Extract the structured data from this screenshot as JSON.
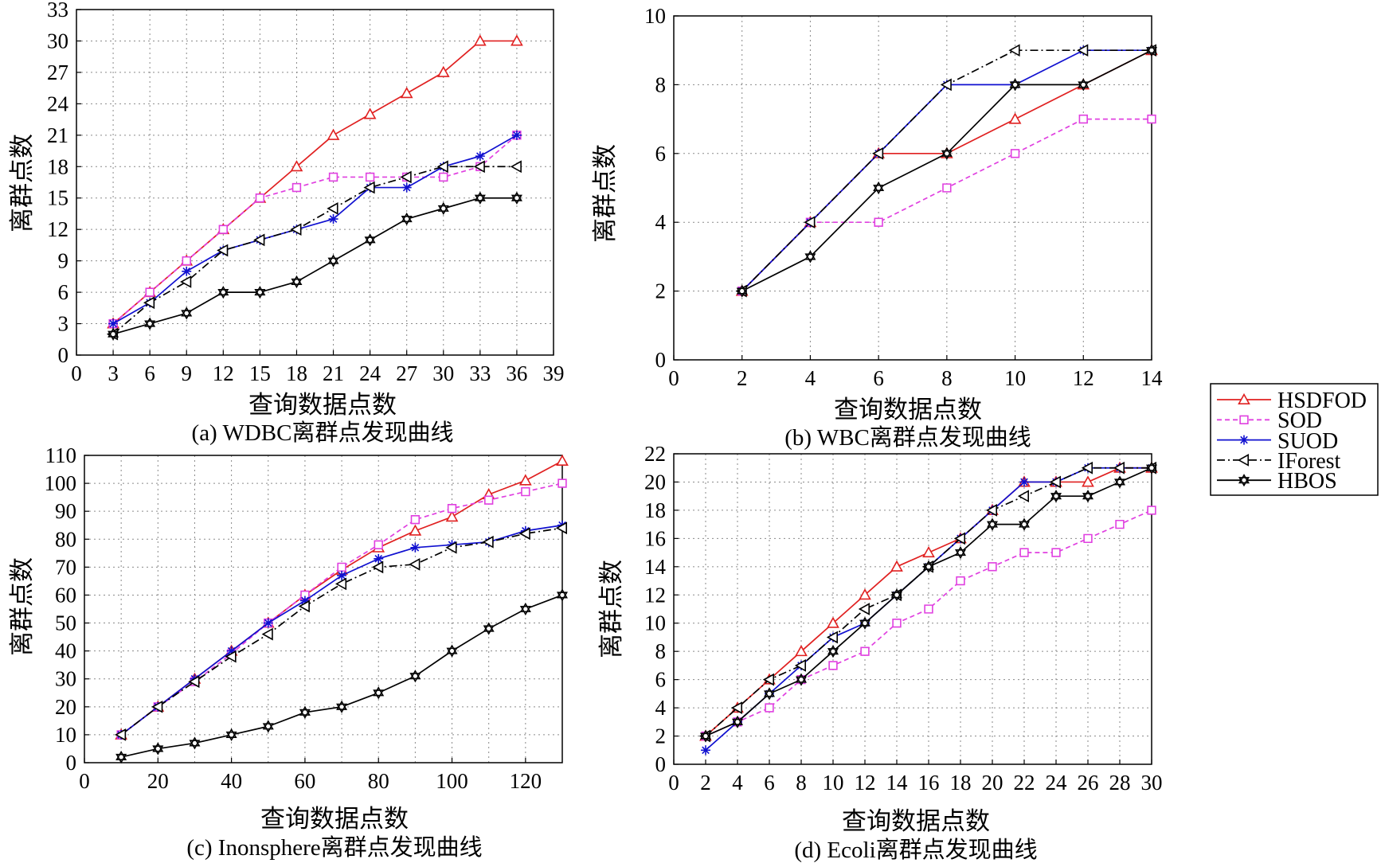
{
  "legend": {
    "entries": [
      {
        "name": "HSDFOD",
        "color": "#e02020",
        "dash": "",
        "marker": "triangle-up"
      },
      {
        "name": "SOD",
        "color": "#e040e0",
        "dash": "6 4",
        "marker": "square"
      },
      {
        "name": "SUOD",
        "color": "#1010d0",
        "dash": "",
        "marker": "star"
      },
      {
        "name": "IForest",
        "color": "#000000",
        "dash": "10 4 2 4",
        "marker": "triangle-left"
      },
      {
        "name": "HBOS",
        "color": "#000000",
        "dash": "",
        "marker": "hexagram"
      }
    ]
  },
  "chart_data": [
    {
      "type": "line",
      "caption": "(a) WDBC离群点发现曲线",
      "xlabel": "查询数据点数",
      "ylabel": "离群点数",
      "xlim": [
        0,
        39
      ],
      "ylim": [
        0,
        33
      ],
      "xticks": [
        0,
        3,
        6,
        9,
        12,
        15,
        18,
        21,
        24,
        27,
        30,
        33,
        36,
        39
      ],
      "yticks": [
        0,
        3,
        6,
        9,
        12,
        15,
        18,
        21,
        24,
        27,
        30,
        33
      ],
      "grid": true,
      "x": [
        3,
        6,
        9,
        12,
        15,
        18,
        21,
        24,
        27,
        30,
        33,
        36
      ],
      "series": [
        {
          "name": "HSDFOD",
          "values": [
            3,
            6,
            9,
            12,
            15,
            18,
            21,
            23,
            25,
            27,
            30,
            30
          ]
        },
        {
          "name": "SOD",
          "values": [
            3,
            6,
            9,
            12,
            15,
            16,
            17,
            17,
            17,
            17,
            18,
            21
          ]
        },
        {
          "name": "SUOD",
          "values": [
            3,
            5,
            8,
            10,
            11,
            12,
            13,
            16,
            16,
            18,
            19,
            21
          ]
        },
        {
          "name": "IForest",
          "values": [
            2,
            5,
            7,
            10,
            11,
            12,
            14,
            16,
            17,
            18,
            18,
            18
          ]
        },
        {
          "name": "HBOS",
          "values": [
            2,
            3,
            4,
            6,
            6,
            7,
            9,
            11,
            13,
            14,
            15,
            15
          ]
        }
      ]
    },
    {
      "type": "line",
      "caption": "(b) WBC离群点发现曲线",
      "xlabel": "查询数据点数",
      "ylabel": "离群点数",
      "xlim": [
        0,
        14
      ],
      "ylim": [
        0,
        10
      ],
      "xticks": [
        0,
        2,
        4,
        6,
        8,
        10,
        12,
        14
      ],
      "yticks": [
        0,
        2,
        4,
        6,
        8,
        10
      ],
      "grid": true,
      "x": [
        2,
        4,
        6,
        8,
        10,
        12,
        14
      ],
      "series": [
        {
          "name": "HSDFOD",
          "values": [
            2,
            4,
            6,
            6,
            7,
            8,
            9
          ]
        },
        {
          "name": "SOD",
          "values": [
            2,
            4,
            4,
            5,
            6,
            7,
            7
          ]
        },
        {
          "name": "SUOD",
          "values": [
            2,
            4,
            6,
            8,
            8,
            9,
            9
          ]
        },
        {
          "name": "IForest",
          "values": [
            2,
            4,
            6,
            8,
            9,
            9,
            9
          ]
        },
        {
          "name": "HBOS",
          "values": [
            2,
            3,
            5,
            6,
            8,
            8,
            9
          ]
        }
      ]
    },
    {
      "type": "line",
      "caption": "(c) Inonsphere离群点发现曲线",
      "xlabel": "查询数据点数",
      "ylabel": "离群点数",
      "xlim": [
        0,
        130
      ],
      "ylim": [
        0,
        110
      ],
      "xticks": [
        0,
        20,
        40,
        60,
        80,
        100,
        120
      ],
      "yticks": [
        0,
        10,
        20,
        30,
        40,
        50,
        60,
        70,
        80,
        90,
        100,
        110
      ],
      "xgrid": [
        0,
        10,
        20,
        30,
        40,
        50,
        60,
        70,
        80,
        90,
        100,
        110,
        120,
        130
      ],
      "grid": true,
      "x": [
        10,
        20,
        30,
        40,
        50,
        60,
        70,
        80,
        90,
        100,
        110,
        120,
        130
      ],
      "series": [
        {
          "name": "HSDFOD",
          "values": [
            10,
            20,
            30,
            40,
            50,
            60,
            69,
            77,
            83,
            88,
            96,
            101,
            108
          ]
        },
        {
          "name": "SOD",
          "values": [
            10,
            20,
            29,
            39,
            50,
            60,
            70,
            78,
            87,
            91,
            94,
            97,
            100
          ]
        },
        {
          "name": "SUOD",
          "values": [
            10,
            20,
            30,
            40,
            50,
            58,
            67,
            73,
            77,
            78,
            79,
            83,
            85
          ]
        },
        {
          "name": "IForest",
          "values": [
            10,
            20,
            29,
            38,
            46,
            56,
            64,
            70,
            71,
            77,
            79,
            82,
            84
          ]
        },
        {
          "name": "HBOS",
          "values": [
            2,
            5,
            7,
            10,
            13,
            18,
            20,
            25,
            31,
            40,
            48,
            55,
            60
          ]
        }
      ]
    },
    {
      "type": "line",
      "caption": "(d) Ecoli离群点发现曲线",
      "xlabel": "查询数据点数",
      "ylabel": "离群点数",
      "xlim": [
        0,
        30
      ],
      "ylim": [
        0,
        22
      ],
      "xticks": [
        0,
        2,
        4,
        6,
        8,
        10,
        12,
        14,
        16,
        18,
        20,
        22,
        24,
        26,
        28,
        30
      ],
      "yticks": [
        0,
        2,
        4,
        6,
        8,
        10,
        12,
        14,
        16,
        18,
        20,
        22
      ],
      "grid": true,
      "x": [
        2,
        4,
        6,
        8,
        10,
        12,
        14,
        16,
        18,
        20,
        22,
        24,
        26,
        28,
        30
      ],
      "series": [
        {
          "name": "HSDFOD",
          "values": [
            2,
            4,
            6,
            8,
            10,
            12,
            14,
            15,
            16,
            18,
            20,
            20,
            20,
            21,
            21
          ]
        },
        {
          "name": "SOD",
          "values": [
            2,
            3,
            4,
            6,
            7,
            8,
            10,
            11,
            13,
            14,
            15,
            15,
            16,
            17,
            18
          ]
        },
        {
          "name": "SUOD",
          "values": [
            1,
            3,
            5,
            7,
            9,
            10,
            12,
            14,
            16,
            18,
            20,
            20,
            21,
            21,
            21
          ]
        },
        {
          "name": "IForest",
          "values": [
            2,
            4,
            6,
            7,
            9,
            11,
            12,
            14,
            16,
            18,
            19,
            20,
            21,
            21,
            21
          ]
        },
        {
          "name": "HBOS",
          "values": [
            2,
            3,
            5,
            6,
            8,
            10,
            12,
            14,
            15,
            17,
            17,
            19,
            19,
            20,
            21
          ]
        }
      ]
    }
  ]
}
